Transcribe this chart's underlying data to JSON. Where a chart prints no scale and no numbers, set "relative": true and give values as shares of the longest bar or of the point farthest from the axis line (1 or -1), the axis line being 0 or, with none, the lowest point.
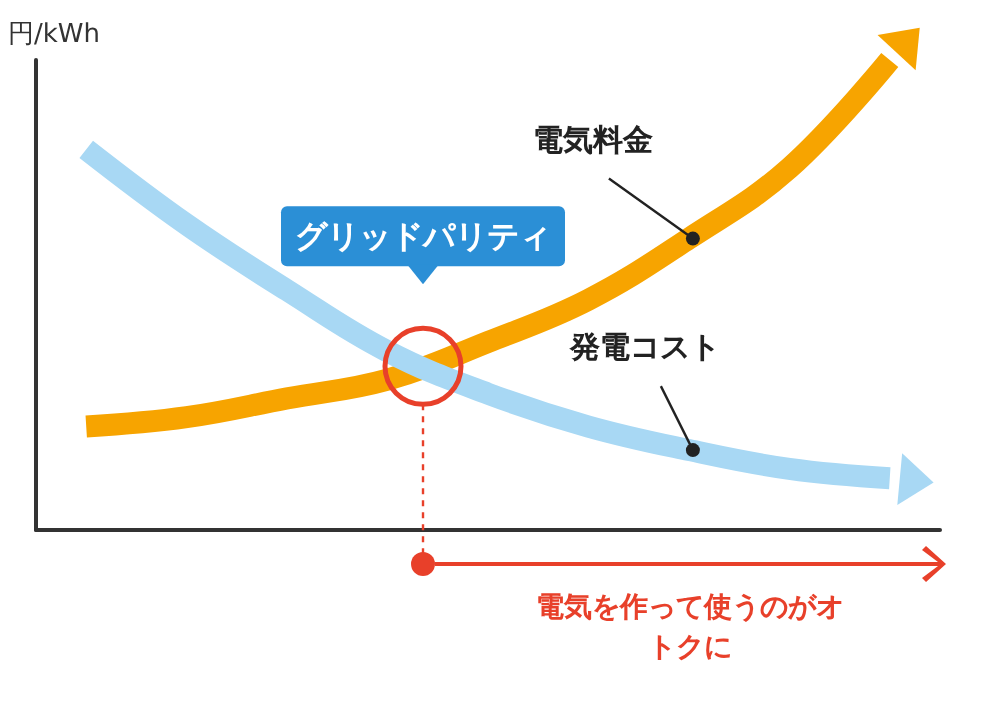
{
  "chart_data": {
    "type": "line",
    "relative": true,
    "ylabel": "円/kWh",
    "categories": [
      null,
      null,
      null,
      null,
      null,
      null,
      null,
      null,
      null
    ],
    "series": [
      {
        "name": "電気料金",
        "color": "#f7a400",
        "values": [
          0.22,
          0.24,
          0.28,
          0.32,
          0.4,
          0.49,
          0.62,
          0.77,
          1.0
        ]
      },
      {
        "name": "発電コスト",
        "color": "#a8d8f4",
        "values": [
          0.81,
          0.65,
          0.51,
          0.38,
          0.29,
          0.22,
          0.17,
          0.13,
          0.11
        ]
      }
    ],
    "annotations": [
      "グリッドパリティ",
      "電気を作って使うのがオトクに"
    ],
    "marker": "none",
    "line_style": "solid",
    "grid": false,
    "legend": false
  }
}
